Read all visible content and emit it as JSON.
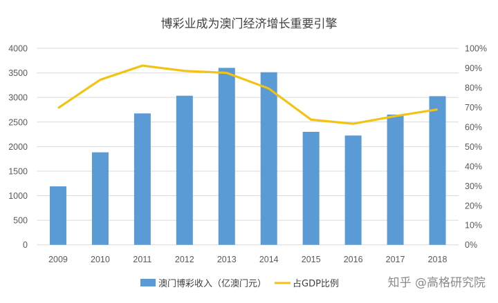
{
  "chart_data": {
    "type": "bar+line",
    "title": "博彩业成为澳门经济增长重要引擎",
    "categories": [
      "2009",
      "2010",
      "2011",
      "2012",
      "2013",
      "2014",
      "2015",
      "2016",
      "2017",
      "2018"
    ],
    "series": [
      {
        "name": "澳门博彩收入（亿澳门元）",
        "type": "bar",
        "axis": "left",
        "color": "#5b9bd5",
        "values": [
          1190,
          1883,
          2675,
          3035,
          3602,
          3513,
          2300,
          2225,
          2651,
          3026
        ]
      },
      {
        "name": "占GDP比例",
        "type": "line",
        "axis": "right",
        "color": "#f2c314",
        "values": [
          69.6,
          84.0,
          91.2,
          88.5,
          87.5,
          79.5,
          63.7,
          61.6,
          65.5,
          68.9
        ]
      }
    ],
    "left_axis": {
      "ylim": [
        0,
        4000
      ],
      "ticks": [
        "0",
        "500",
        "1000",
        "1500",
        "2000",
        "2500",
        "3000",
        "3500",
        "4000"
      ]
    },
    "right_axis": {
      "ylim": [
        0,
        100
      ],
      "ticks": [
        "0%",
        "10%",
        "20%",
        "30%",
        "40%",
        "50%",
        "60%",
        "70%",
        "80%",
        "90%",
        "100%"
      ]
    },
    "grid": true,
    "legend": "bottom"
  },
  "watermark": "知乎 @高格研究院"
}
